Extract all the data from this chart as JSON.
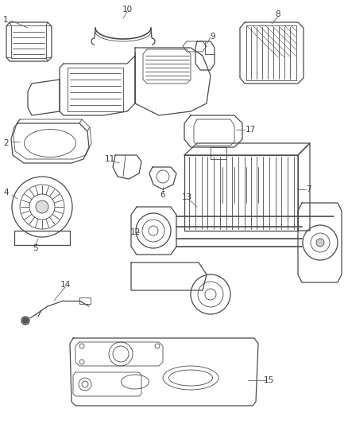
{
  "bg_color": "#ffffff",
  "line_color": "#4a4a4a",
  "label_color": "#3a3a3a",
  "fig_width": 4.38,
  "fig_height": 5.33,
  "dpi": 100
}
